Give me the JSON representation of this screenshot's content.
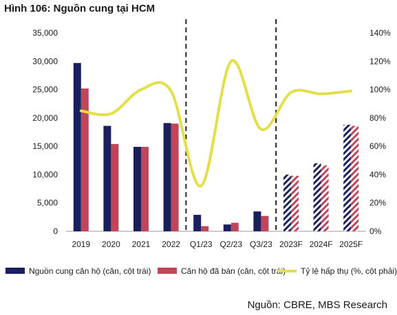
{
  "title": "Hình 106: Nguồn cung tại HCM",
  "source": "Nguồn: CBRE, MBS Research",
  "colors": {
    "supply": "#1b1f5e",
    "sold": "#c0455b",
    "absorption": "#e3df4a"
  },
  "chart_data": {
    "type": "bar",
    "title": "Hình 106: Nguồn cung tại HCM",
    "categories": [
      "2019",
      "2020",
      "2021",
      "2022",
      "Q1/23",
      "Q2/23",
      "Q3/23",
      "2023F",
      "2024F",
      "2025F"
    ],
    "forecast_categories": [
      "2023F",
      "2024F",
      "2025F"
    ],
    "series": [
      {
        "name": "Nguồn cung căn hộ (căn, cột trái)",
        "type": "bar",
        "axis": "left",
        "values": [
          29700,
          18600,
          14900,
          19100,
          2900,
          1200,
          3500,
          10000,
          12000,
          18800
        ]
      },
      {
        "name": "Căn hộ đã bán (căn, cột trái)",
        "type": "bar",
        "axis": "left",
        "values": [
          25200,
          15400,
          14900,
          19000,
          900,
          1500,
          2700,
          9800,
          11600,
          18600
        ]
      },
      {
        "name": "Tỷ lệ hấp thụ (%, cột phải)",
        "type": "line",
        "axis": "right",
        "values": [
          85,
          83,
          100,
          99,
          32,
          120,
          72,
          98,
          97,
          99
        ]
      }
    ],
    "y_left": {
      "min": 0,
      "max": 35000,
      "ticks": [
        "0",
        "5,000",
        "10,000",
        "15,000",
        "20,000",
        "25,000",
        "30,000",
        "35,000"
      ]
    },
    "y_right": {
      "min": 0,
      "max": 140,
      "ticks": [
        "0%",
        "20%",
        "40%",
        "60%",
        "80%",
        "100%",
        "120%",
        "140%"
      ]
    },
    "separators_after": [
      "2022",
      "Q3/23"
    ],
    "legend_position": "bottom"
  }
}
